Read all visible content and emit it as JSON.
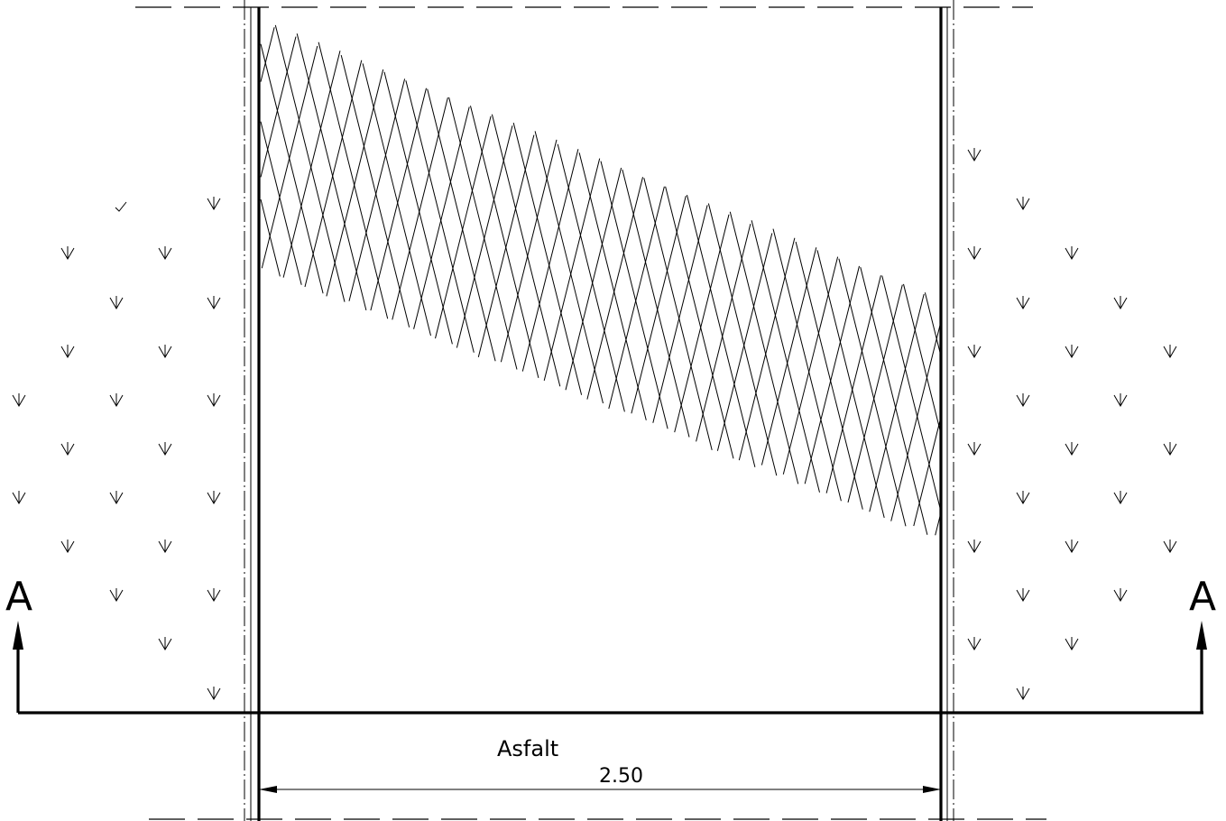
{
  "drawing": {
    "material_label": "Asfalt",
    "dimension_label": "2.50",
    "section_marker_left": "A",
    "section_marker_right": "A",
    "colors": {
      "line": "#000000",
      "background": "#ffffff"
    }
  }
}
